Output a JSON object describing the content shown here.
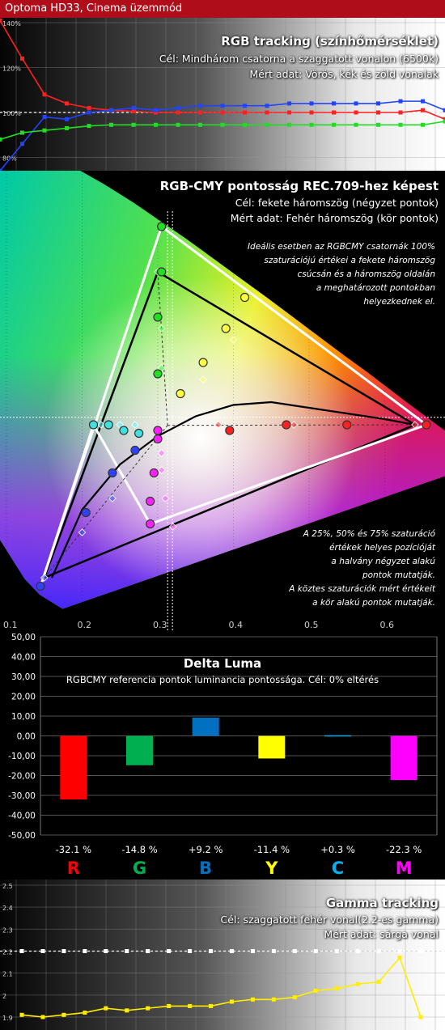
{
  "header": {
    "title": "Optoma HD33, Cinema üzemmód"
  },
  "rgb_tracking": {
    "title": "RGB tracking (színhőmérséklet)",
    "line1": "Cél: Mindhárom csatorna a szaggatott vonalon (6500k)",
    "line2": "Mért adat: Vörös, kék és zöld vonalak"
  },
  "cie": {
    "title": "RGB-CMY pontosság REC.709-hez képest",
    "line1": "Cél: fekete háromszög (négyzet pontok)",
    "line2": "Mért adat: Fehér háromszög (kör pontok)",
    "note1": [
      "Ideális esetben az RGBCMY csatornák 100%",
      "szaturációjú értékei a fekete háromszög",
      "csúcsán  és a háromszög oldalán",
      "a meghatározott pontokban",
      "helyezkednek el."
    ],
    "note2": [
      "A 25%, 50% és 75% szaturáció",
      "értékek helyes pozícióját",
      "a halvány négyzet alakú",
      "pontok mutatják.",
      "A köztes szaturációk mért értékeit",
      "a kör alakú pontok mutatják."
    ]
  },
  "luma": {
    "title": "Delta Luma",
    "subtitle": "RGBCMY referencia pontok luminancia pontossága. Cél: 0% eltérés"
  },
  "gamma": {
    "title": "Gamma tracking",
    "line1": "Cél: szaggatott fehér vonal(2.2-es gamma)",
    "line2": "Mért adat: sárga vonal"
  },
  "chart_data": [
    {
      "type": "line",
      "title": "RGB tracking (színhőmérséklet)",
      "ytick_labels": [
        "140%",
        "120%",
        "100%",
        "80%"
      ],
      "target": 100,
      "x": [
        0,
        1,
        2,
        3,
        4,
        5,
        6,
        7,
        8,
        9,
        10,
        11,
        12,
        13,
        14,
        15,
        16,
        17,
        18,
        19,
        20
      ],
      "series": [
        {
          "name": "Vörös",
          "color": "#ff2020",
          "values": [
            141,
            124,
            108,
            104,
            102,
            101,
            100.5,
            100,
            100,
            100,
            100,
            100,
            100,
            100,
            100,
            100,
            100,
            100,
            100,
            101,
            97
          ]
        },
        {
          "name": "Kék",
          "color": "#2244ff",
          "values": [
            74,
            86,
            98,
            97,
            100,
            101,
            102,
            101,
            102,
            103,
            103,
            103,
            103,
            104,
            104,
            104,
            104,
            104,
            105,
            105,
            101
          ]
        },
        {
          "name": "Zöld",
          "color": "#22dd22",
          "values": [
            88,
            91,
            92,
            93,
            94,
            94.5,
            94.5,
            94.5,
            94.5,
            94.5,
            94.5,
            94.5,
            94.5,
            94.5,
            94.5,
            94.5,
            94.5,
            94.5,
            94.5,
            94.5,
            96
          ]
        }
      ]
    },
    {
      "type": "scatter",
      "title": "RGB-CMY pontosság REC.709-hez képest",
      "xtick_labels": [
        "0.1",
        "0.2",
        "0.3",
        "0.4",
        "0.5",
        "0.6"
      ],
      "xlim": [
        0.1,
        0.7
      ],
      "ylim": [
        0.0,
        0.85
      ],
      "white_point": [
        0.313,
        0.329
      ],
      "target_triangle": [
        [
          0.64,
          0.33
        ],
        [
          0.3,
          0.6
        ],
        [
          0.15,
          0.06
        ]
      ],
      "measured_triangle": [
        [
          0.655,
          0.33
        ],
        [
          0.305,
          0.68
        ],
        [
          0.145,
          0.045
        ],
        [
          0.215,
          0.33
        ],
        [
          0.29,
          0.155
        ]
      ],
      "measured_points": [
        {
          "color": "#ff2020",
          "points": [
            [
              0.655,
              0.33
            ],
            [
              0.55,
              0.33
            ],
            [
              0.47,
              0.33
            ],
            [
              0.395,
              0.32
            ]
          ]
        },
        {
          "color": "#20e020",
          "points": [
            [
              0.305,
              0.68
            ],
            [
              0.305,
              0.6
            ],
            [
              0.3,
              0.52
            ],
            [
              0.3,
              0.42
            ]
          ]
        },
        {
          "color": "#3040ff",
          "points": [
            [
              0.145,
              0.045
            ],
            [
              0.205,
              0.175
            ],
            [
              0.24,
              0.245
            ],
            [
              0.27,
              0.285
            ]
          ]
        },
        {
          "color": "#ffff40",
          "points": [
            [
              0.415,
              0.555
            ],
            [
              0.39,
              0.5
            ],
            [
              0.36,
              0.44
            ],
            [
              0.33,
              0.385
            ]
          ]
        },
        {
          "color": "#40e0e0",
          "points": [
            [
              0.215,
              0.33
            ],
            [
              0.235,
              0.33
            ],
            [
              0.255,
              0.32
            ],
            [
              0.275,
              0.315
            ]
          ]
        },
        {
          "color": "#ff20ff",
          "points": [
            [
              0.29,
              0.155
            ],
            [
              0.29,
              0.195
            ],
            [
              0.295,
              0.245
            ],
            [
              0.3,
              0.305
            ],
            [
              0.3,
              0.32
            ]
          ]
        }
      ],
      "target_points": [
        {
          "color": "#ff4040",
          "points": [
            [
              0.64,
              0.33
            ],
            [
              0.48,
              0.33
            ],
            [
              0.38,
              0.33
            ]
          ]
        },
        {
          "color": "#40ff40",
          "points": [
            [
              0.3,
              0.6
            ],
            [
              0.305,
              0.5
            ],
            [
              0.305,
              0.43
            ]
          ]
        },
        {
          "color": "#4060ff",
          "points": [
            [
              0.15,
              0.06
            ],
            [
              0.2,
              0.14
            ],
            [
              0.24,
              0.2
            ]
          ]
        },
        {
          "color": "#ffff60",
          "points": [
            [
              0.4,
              0.48
            ],
            [
              0.36,
              0.41
            ]
          ]
        },
        {
          "color": "#60ffff",
          "points": [
            [
              0.225,
              0.33
            ],
            [
              0.25,
              0.33
            ],
            [
              0.27,
              0.33
            ]
          ]
        },
        {
          "color": "#ff60ff",
          "points": [
            [
              0.32,
              0.15
            ],
            [
              0.31,
              0.2
            ],
            [
              0.305,
              0.25
            ],
            [
              0.305,
              0.28
            ]
          ]
        }
      ]
    },
    {
      "type": "bar",
      "title": "Delta Luma",
      "categories": [
        "R",
        "G",
        "B",
        "Y",
        "C",
        "M"
      ],
      "values": [
        -32.1,
        -14.8,
        9.2,
        -11.4,
        0.3,
        -22.3
      ],
      "value_labels": [
        "-32.1 %",
        "-14.8 %",
        "+9.2 %",
        "-11.4 %",
        "+0.3 %",
        "-22.3 %"
      ],
      "colors": [
        "#ff0000",
        "#00b050",
        "#0070c0",
        "#ffff00",
        "#00b0f0",
        "#ff00ff"
      ],
      "ytick_labels": [
        "50,00",
        "40,00",
        "30,00",
        "20,00",
        "10,00",
        "0,00",
        "-10,00",
        "-20,00",
        "-30,00",
        "-40,00",
        "-50,00"
      ],
      "ylim": [
        -50,
        50
      ]
    },
    {
      "type": "line",
      "title": "Gamma tracking",
      "ytick_labels": [
        "2.5",
        "2.4",
        "2.3",
        "2.2",
        "2.1",
        "2",
        "1.9"
      ],
      "ylim": [
        1.88,
        2.52
      ],
      "target": 2.2,
      "x": [
        0,
        1,
        2,
        3,
        4,
        5,
        6,
        7,
        8,
        9,
        10,
        11,
        12,
        13,
        14,
        15,
        16,
        17,
        18,
        19
      ],
      "series": [
        {
          "name": "Gamma",
          "color": "#ffee00",
          "values": [
            1.91,
            1.9,
            1.91,
            1.92,
            1.94,
            1.93,
            1.94,
            1.95,
            1.95,
            1.95,
            1.97,
            1.98,
            1.98,
            1.99,
            2.02,
            2.03,
            2.05,
            2.06,
            2.17,
            1.9
          ]
        }
      ]
    }
  ]
}
